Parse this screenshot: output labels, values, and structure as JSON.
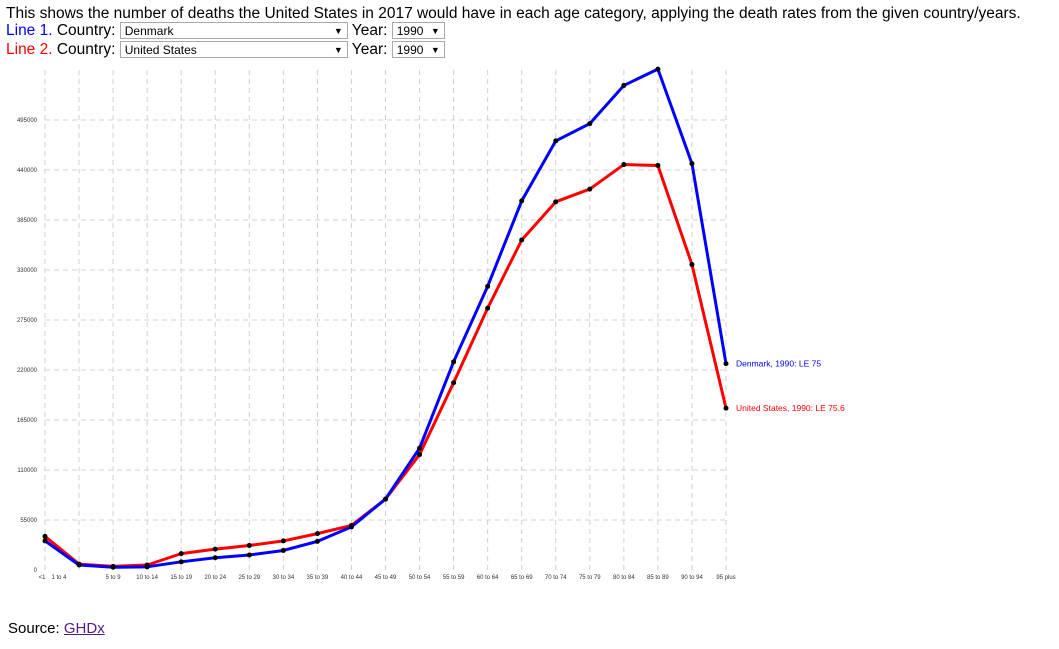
{
  "intro_text": "This shows the number of deaths the United States in 2017 would have in each age category, applying the death rates from the given country/years.",
  "controls": {
    "line1": {
      "prefix": "Line 1.",
      "country_label": "Country:",
      "country": "Denmark",
      "year_label": "Year:",
      "year": "1990",
      "color": "#0000ff"
    },
    "line2": {
      "prefix": "Line 2.",
      "country_label": "Country:",
      "country": "United States",
      "year_label": "Year:",
      "year": "1990",
      "color": "#ff0000"
    }
  },
  "source": {
    "label": "Source:",
    "link_text": "GHDx"
  },
  "chart_data": {
    "type": "line",
    "categories": [
      "<1",
      "1 to 4",
      "5 to 9",
      "10 to 14",
      "15 to 19",
      "20 to 24",
      "25 to 29",
      "30 to 34",
      "35 to 39",
      "40 to 44",
      "45 to 49",
      "50 to 54",
      "55 to 59",
      "60 to 64",
      "65 to 69",
      "70 to 74",
      "75 to 79",
      "80 to 84",
      "85 to 89",
      "90 to 94",
      "95 plus"
    ],
    "yticks": [
      0,
      55000,
      110000,
      165000,
      220000,
      275000,
      330000,
      385000,
      440000,
      495000
    ],
    "ylim": [
      0,
      550000
    ],
    "grid": true,
    "series": [
      {
        "name": "Denmark, 1990: LE 75",
        "color": "#0000ff",
        "values": [
          32000,
          5500,
          3000,
          3500,
          9000,
          13500,
          16500,
          21500,
          31500,
          47500,
          78000,
          134000,
          229000,
          312000,
          406000,
          472000,
          491000,
          533000,
          551000,
          447000,
          227000
        ]
      },
      {
        "name": "United States, 1990: LE 75.6",
        "color": "#ff0000",
        "values": [
          37000,
          6500,
          4000,
          5500,
          18000,
          23000,
          27000,
          32000,
          40000,
          49000,
          78000,
          127000,
          206000,
          288000,
          363000,
          405000,
          419000,
          446000,
          445000,
          336000,
          178000
        ]
      }
    ]
  }
}
